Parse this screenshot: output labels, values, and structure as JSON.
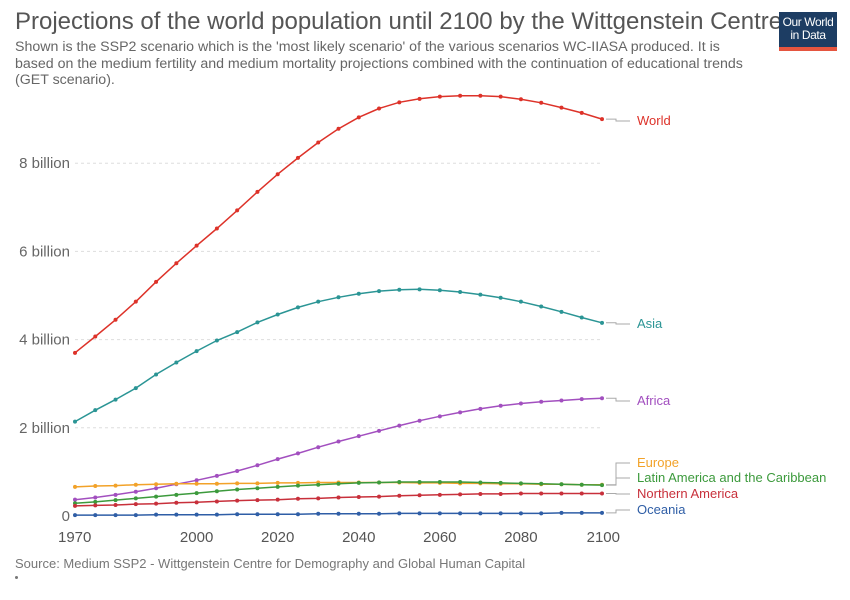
{
  "title": "Projections of the world population until 2100 by the Wittgenstein Centre",
  "subtitle": "Shown is the SSP2 scenario which is the 'most likely scenario' of the various scenarios WC-IIASA produced. It is based on the medium fertility and medium mortality projections combined with the continuation of educational trends (GET scenario).",
  "logo": {
    "line1": "Our World",
    "line2": "in Data"
  },
  "source": "Source: Medium SSP2 - Wittgenstein Centre for Demography and Global Human Capital",
  "colors": {
    "world": "#dd3229",
    "asia": "#2b9595",
    "africa": "#a24fbf",
    "europe": "#f2a229",
    "latam": "#3c9a3c",
    "namerica": "#c8303b",
    "oceania": "#2f5ea6"
  },
  "chart_data": {
    "type": "line",
    "title": "Projections of the world population until 2100 by the Wittgenstein Centre",
    "xlabel": "",
    "ylabel": "",
    "xlim": [
      1970,
      2100
    ],
    "ylim": [
      0,
      9.5
    ],
    "yunit": "billion",
    "x": [
      1970,
      1975,
      1980,
      1985,
      1990,
      1995,
      2000,
      2005,
      2010,
      2015,
      2020,
      2025,
      2030,
      2035,
      2040,
      2045,
      2050,
      2055,
      2060,
      2065,
      2070,
      2075,
      2080,
      2085,
      2090,
      2095,
      2100
    ],
    "y_ticks": [
      {
        "value": 0,
        "label": "0"
      },
      {
        "value": 2,
        "label": "2 billion"
      },
      {
        "value": 4,
        "label": "4 billion"
      },
      {
        "value": 6,
        "label": "6 billion"
      },
      {
        "value": 8,
        "label": "8 billion"
      }
    ],
    "x_ticks": [
      {
        "value": 1970,
        "label": "1970"
      },
      {
        "value": 2000,
        "label": "2000"
      },
      {
        "value": 2020,
        "label": "2020"
      },
      {
        "value": 2040,
        "label": "2040"
      },
      {
        "value": 2060,
        "label": "2060"
      },
      {
        "value": 2080,
        "label": "2080"
      },
      {
        "value": 2100,
        "label": "2100"
      }
    ],
    "grid": true,
    "series": [
      {
        "key": "world",
        "name": "World",
        "values": [
          3.7,
          4.07,
          4.45,
          4.86,
          5.31,
          5.73,
          6.13,
          6.52,
          6.93,
          7.35,
          7.75,
          8.12,
          8.47,
          8.78,
          9.04,
          9.24,
          9.38,
          9.46,
          9.51,
          9.53,
          9.53,
          9.51,
          9.45,
          9.37,
          9.26,
          9.14,
          9.0
        ]
      },
      {
        "key": "asia",
        "name": "Asia",
        "values": [
          2.14,
          2.4,
          2.64,
          2.9,
          3.21,
          3.48,
          3.74,
          3.98,
          4.17,
          4.39,
          4.57,
          4.73,
          4.86,
          4.96,
          5.04,
          5.1,
          5.13,
          5.14,
          5.12,
          5.08,
          5.02,
          4.95,
          4.86,
          4.75,
          4.63,
          4.5,
          4.38
        ]
      },
      {
        "key": "africa",
        "name": "Africa",
        "values": [
          0.37,
          0.42,
          0.48,
          0.55,
          0.63,
          0.72,
          0.81,
          0.91,
          1.02,
          1.15,
          1.29,
          1.42,
          1.56,
          1.69,
          1.81,
          1.93,
          2.05,
          2.16,
          2.26,
          2.35,
          2.43,
          2.5,
          2.55,
          2.59,
          2.62,
          2.65,
          2.67
        ]
      },
      {
        "key": "europe",
        "name": "Europe",
        "values": [
          0.66,
          0.68,
          0.69,
          0.71,
          0.72,
          0.73,
          0.73,
          0.73,
          0.74,
          0.74,
          0.75,
          0.75,
          0.76,
          0.76,
          0.76,
          0.76,
          0.76,
          0.75,
          0.75,
          0.74,
          0.74,
          0.73,
          0.73,
          0.72,
          0.72,
          0.71,
          0.71
        ]
      },
      {
        "key": "latam",
        "name": "Latin America and the Caribbean",
        "values": [
          0.29,
          0.32,
          0.36,
          0.4,
          0.44,
          0.48,
          0.52,
          0.56,
          0.6,
          0.63,
          0.66,
          0.69,
          0.71,
          0.73,
          0.75,
          0.76,
          0.77,
          0.77,
          0.77,
          0.77,
          0.76,
          0.75,
          0.74,
          0.73,
          0.72,
          0.71,
          0.7
        ]
      },
      {
        "key": "namerica",
        "name": "Northern America",
        "values": [
          0.23,
          0.24,
          0.25,
          0.27,
          0.28,
          0.3,
          0.31,
          0.33,
          0.35,
          0.36,
          0.37,
          0.39,
          0.4,
          0.42,
          0.43,
          0.44,
          0.46,
          0.47,
          0.48,
          0.49,
          0.5,
          0.5,
          0.51,
          0.51,
          0.51,
          0.51,
          0.51
        ]
      },
      {
        "key": "oceania",
        "name": "Oceania",
        "values": [
          0.02,
          0.02,
          0.02,
          0.02,
          0.03,
          0.03,
          0.03,
          0.03,
          0.04,
          0.04,
          0.04,
          0.04,
          0.05,
          0.05,
          0.05,
          0.05,
          0.06,
          0.06,
          0.06,
          0.06,
          0.06,
          0.06,
          0.06,
          0.06,
          0.07,
          0.07,
          0.07
        ]
      }
    ],
    "legend": "right-end labels"
  }
}
